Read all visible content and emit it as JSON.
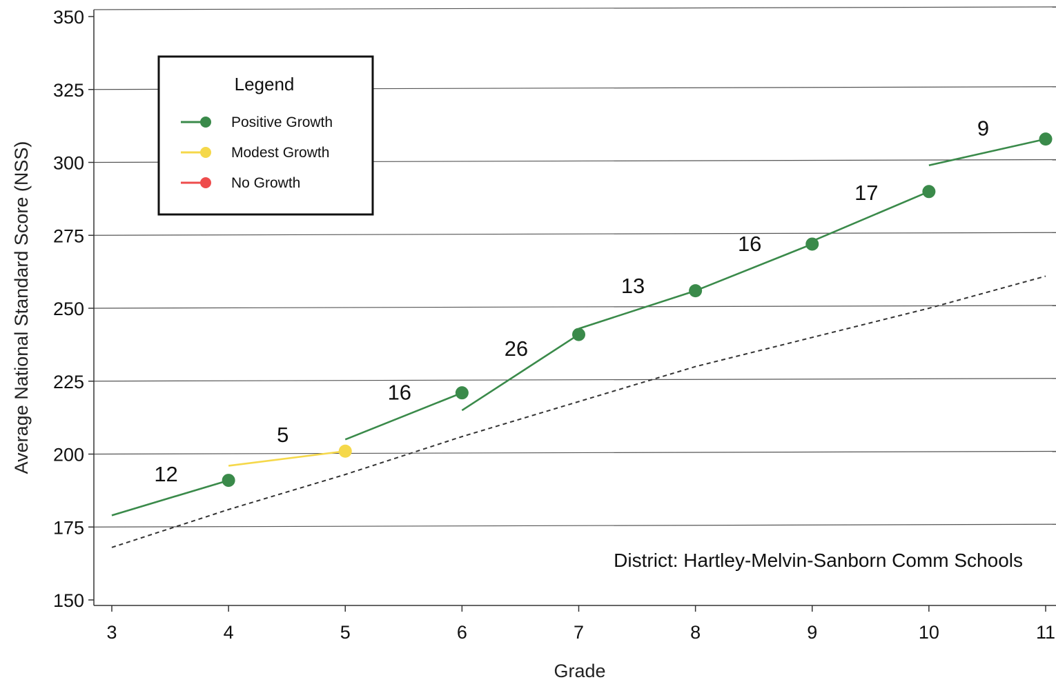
{
  "chart_data": {
    "type": "line",
    "title": "",
    "xlabel": "Grade",
    "ylabel": "Average National Standard Score (NSS)",
    "xlim": [
      3,
      11
    ],
    "ylim": [
      150,
      350
    ],
    "x_ticks": [
      "3",
      "4",
      "5",
      "6",
      "7",
      "8",
      "9",
      "10",
      "11"
    ],
    "y_ticks": [
      "150",
      "175",
      "200",
      "225",
      "250",
      "275",
      "300",
      "325",
      "350"
    ],
    "grid": "horizontal",
    "legend": {
      "title": "Legend",
      "placement": "top-left",
      "items": [
        {
          "label": "Positive Growth",
          "color": "#3a8a4a"
        },
        {
          "label": "Modest Growth",
          "color": "#f5d84a"
        },
        {
          "label": "No Growth",
          "color": "#ee4c4c"
        }
      ]
    },
    "segments": [
      {
        "x0": 3,
        "y0": 179,
        "x1": 4,
        "y1": 191,
        "growth": 12,
        "label": "12",
        "category": "Positive Growth"
      },
      {
        "x0": 4,
        "y0": 196,
        "x1": 5,
        "y1": 201,
        "growth": 5,
        "label": "5",
        "category": "Modest Growth"
      },
      {
        "x0": 5,
        "y0": 205,
        "x1": 6,
        "y1": 221,
        "growth": 16,
        "label": "16",
        "category": "Positive Growth"
      },
      {
        "x0": 6,
        "y0": 215,
        "x1": 7,
        "y1": 241,
        "growth": 26,
        "label": "26",
        "category": "Positive Growth"
      },
      {
        "x0": 7,
        "y0": 243,
        "x1": 8,
        "y1": 256,
        "growth": 13,
        "label": "13",
        "category": "Positive Growth"
      },
      {
        "x0": 8,
        "y0": 256,
        "x1": 9,
        "y1": 272,
        "growth": 16,
        "label": "16",
        "category": "Positive Growth"
      },
      {
        "x0": 9,
        "y0": 273,
        "x1": 10,
        "y1": 290,
        "growth": 17,
        "label": "17",
        "category": "Positive Growth"
      },
      {
        "x0": 10,
        "y0": 299,
        "x1": 11,
        "y1": 308,
        "growth": 9,
        "label": "9",
        "category": "Positive Growth"
      }
    ],
    "points": [
      {
        "x": 4,
        "y": 191,
        "category": "Positive Growth"
      },
      {
        "x": 5,
        "y": 201,
        "category": "Modest Growth"
      },
      {
        "x": 6,
        "y": 221,
        "category": "Positive Growth"
      },
      {
        "x": 7,
        "y": 241,
        "category": "Positive Growth"
      },
      {
        "x": 8,
        "y": 256,
        "category": "Positive Growth"
      },
      {
        "x": 9,
        "y": 272,
        "category": "Positive Growth"
      },
      {
        "x": 10,
        "y": 290,
        "category": "Positive Growth"
      },
      {
        "x": 11,
        "y": 308,
        "category": "Positive Growth"
      }
    ],
    "reference_line": {
      "style": "dashed",
      "color": "#333333",
      "x": [
        3,
        4,
        5,
        6,
        7,
        8,
        9,
        10,
        11
      ],
      "y": [
        168,
        181,
        193,
        206,
        218,
        230,
        240,
        250,
        261
      ]
    },
    "annotation": "District: Hartley-Melvin-Sanborn Comm Schools"
  }
}
